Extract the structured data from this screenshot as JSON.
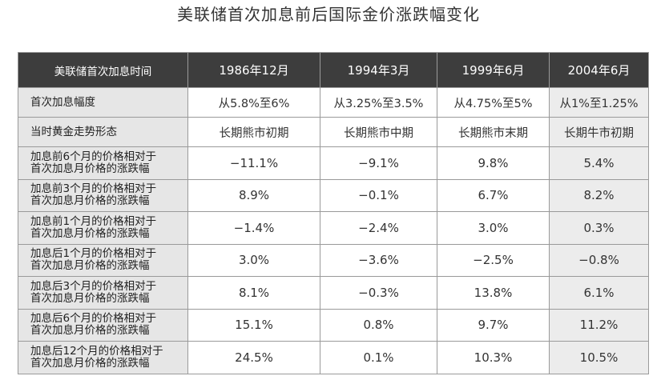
{
  "title": "美联储首次加息前后国际金价涨跌幅变化",
  "table": {
    "header": {
      "label": "美联储首次加息时间",
      "columns": [
        "1986年12月",
        "1994年3月",
        "1999年6月",
        "2004年6月"
      ]
    },
    "rows": [
      {
        "label": [
          "首次加息幅度"
        ],
        "values": [
          "从5.8%至6%",
          "从3.25%至3.5%",
          "从4.75%至5%",
          "从1%至1.25%"
        ]
      },
      {
        "label": [
          "当时黄金走势形态"
        ],
        "values": [
          "长期熊市初期",
          "长期熊市中期",
          "长期熊市末期",
          "长期牛市初期"
        ]
      },
      {
        "label": [
          "加息前6个月的价格相对于",
          "首次加息月价格的涨跌幅"
        ],
        "values": [
          "−11.1%",
          "−9.1%",
          "9.8%",
          "5.4%"
        ]
      },
      {
        "label": [
          "加息前3个月的价格相对于",
          "首次加息月价格的涨跌幅"
        ],
        "values": [
          "8.9%",
          "−0.1%",
          "6.7%",
          "8.2%"
        ]
      },
      {
        "label": [
          "加息前1个月的价格相对于",
          "首次加息月价格的涨跌幅"
        ],
        "values": [
          "−1.4%",
          "−2.4%",
          "3.0%",
          "0.3%"
        ]
      },
      {
        "label": [
          "加息后1个月的价格相对于",
          "首次加息月价格的涨跌幅"
        ],
        "values": [
          "3.0%",
          "−3.6%",
          "−2.5%",
          "−0.8%"
        ]
      },
      {
        "label": [
          "加息后3个月的价格相对于",
          "首次加息月价格的涨跌幅"
        ],
        "values": [
          "8.1%",
          "−0.3%",
          "13.8%",
          "6.1%"
        ]
      },
      {
        "label": [
          "加息后6个月的价格相对于",
          "首次加息月价格的涨跌幅"
        ],
        "values": [
          "15.1%",
          "0.8%",
          "9.7%",
          "11.2%"
        ]
      },
      {
        "label": [
          "加息后12个月的价格相对于",
          "首次加息月价格的涨跌幅"
        ],
        "values": [
          "24.5%",
          "0.1%",
          "10.3%",
          "10.5%"
        ]
      }
    ]
  }
}
